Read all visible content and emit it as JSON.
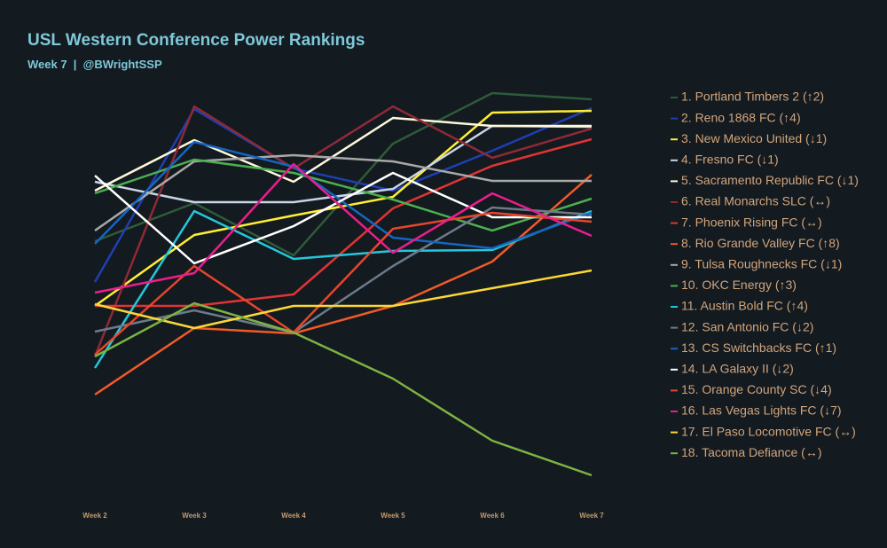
{
  "chart_data": {
    "type": "line",
    "title": "USL Western Conference Power Rankings",
    "subtitle": "Week 7  |  @BWrightSSP",
    "categories": [
      "Week 2",
      "Week 3",
      "Week 4",
      "Week 5",
      "Week 6",
      "Week 7"
    ],
    "ylim": [
      60,
      500
    ],
    "series": [
      {
        "name": "1. Portland Timbers 2 (↑2)",
        "color": "#2e5a3a",
        "values": [
          328,
          371,
          312,
          438,
          495,
          488
        ]
      },
      {
        "name": "2. Reno 1868 FC (↑4)",
        "color": "#1f3fb0",
        "values": [
          282,
          477,
          410,
          385,
          430,
          478
        ]
      },
      {
        "name": "3. New Mexico United (↓1)",
        "color": "#ffee33",
        "values": [
          255,
          335,
          357,
          378,
          473,
          475
        ]
      },
      {
        "name": "4. Fresno FC (↓1)",
        "color": "#c9d6e6",
        "values": [
          395,
          372,
          372,
          387,
          458,
          457
        ]
      },
      {
        "name": "5. Sacramento Republic FC (↓1)",
        "color": "#fff8dc",
        "values": [
          385,
          442,
          395,
          467,
          458,
          458
        ]
      },
      {
        "name": "6. Real Monarchs SLC (↔)",
        "color": "#8e2a36",
        "values": [
          198,
          480,
          410,
          480,
          422,
          455
        ]
      },
      {
        "name": "7. Phoenix Rising FC (↔)",
        "color": "#e03434",
        "values": [
          255,
          255,
          268,
          365,
          413,
          443
        ]
      },
      {
        "name": "8. Rio Grande Valley FC (↑8)",
        "color": "#f05a28",
        "values": [
          155,
          230,
          224,
          255,
          305,
          403
        ]
      },
      {
        "name": "9. Tulsa Roughnecks FC (↓1)",
        "color": "#a8a8a8",
        "values": [
          340,
          418,
          425,
          418,
          396,
          396
        ]
      },
      {
        "name": "10. OKC Energy (↑3)",
        "color": "#4caf50",
        "values": [
          382,
          420,
          405,
          375,
          340,
          376
        ]
      },
      {
        "name": "11. Austin Bold FC (↑4)",
        "color": "#26c6da",
        "values": [
          185,
          362,
          308,
          317,
          318,
          362
        ]
      },
      {
        "name": "12. San Antonio FC (↓2)",
        "color": "#6b7b8b",
        "values": [
          226,
          250,
          225,
          300,
          366,
          358
        ]
      },
      {
        "name": "13. CS Switchbacks FC (↑1)",
        "color": "#1565c0",
        "values": [
          325,
          440,
          412,
          332,
          320,
          360
        ]
      },
      {
        "name": "14. LA Galaxy II (↓2)",
        "color": "#ffffff",
        "values": [
          402,
          303,
          345,
          405,
          355,
          355
        ]
      },
      {
        "name": "15. Orange County SC (↓4)",
        "color": "#e8452c",
        "values": [
          200,
          300,
          225,
          342,
          360,
          350
        ]
      },
      {
        "name": "16. Las Vegas Lights FC (↓7)",
        "color": "#e91e8c",
        "values": [
          270,
          292,
          415,
          315,
          382,
          334
        ]
      },
      {
        "name": "17. El Paso Locomotive FC (↔)",
        "color": "#fdd835",
        "values": [
          257,
          230,
          255,
          255,
          275,
          295
        ]
      },
      {
        "name": "18. Tacoma Defiance (↔)",
        "color": "#7cb342",
        "values": [
          198,
          258,
          225,
          173,
          103,
          64
        ]
      }
    ]
  }
}
